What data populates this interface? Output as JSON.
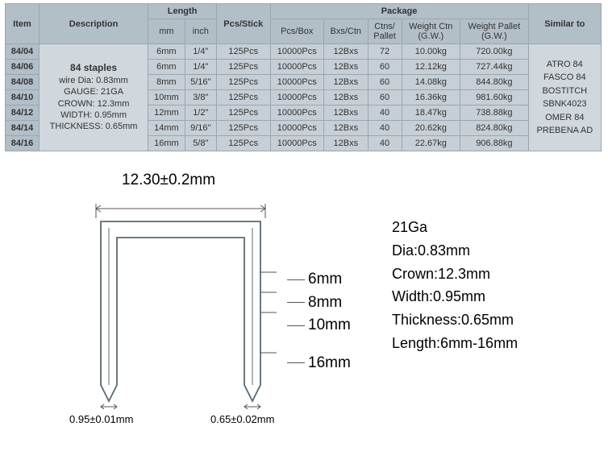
{
  "table": {
    "headerGroups": {
      "item": "Item",
      "description": "Description",
      "length": "Length",
      "pcsStick": "Pcs/Stick",
      "package": "Package",
      "similar": "Similar to"
    },
    "headerSub": {
      "mm": "mm",
      "inch": "inch",
      "pcsBox": "Pcs/Box",
      "bxsCtn": "Bxs/Ctn",
      "ctnsPallet": "Ctns/\nPallet",
      "weightCtn": "Weight Ctn\n(G.W.)",
      "weightPallet": "Weight Pallet\n(G.W.)"
    },
    "description": {
      "title": "84 staples",
      "l1": "wire Dia: 0.83mm",
      "l2": "GAUGE: 21GA",
      "l3": "CROWN: 12.3mm",
      "l4": "WIDTH: 0.95mm",
      "l5": "THICKNESS: 0.65mm"
    },
    "similar": {
      "l1": "ATRO 84",
      "l2": "FASCO 84",
      "l3": "BOSTITCH",
      "l4": "SBNK4023",
      "l5": "OMER 84",
      "l6": "PREBENA AD"
    },
    "rows": [
      {
        "item": "84/04",
        "mm": "6mm",
        "inch": "1/4\"",
        "pcsStick": "125Pcs",
        "pcsBox": "10000Pcs",
        "bxsCtn": "12Bxs",
        "ctnsPallet": "72",
        "wCtn": "10.00kg",
        "wPallet": "720.00kg"
      },
      {
        "item": "84/06",
        "mm": "6mm",
        "inch": "1/4\"",
        "pcsStick": "125Pcs",
        "pcsBox": "10000Pcs",
        "bxsCtn": "12Bxs",
        "ctnsPallet": "60",
        "wCtn": "12.12kg",
        "wPallet": "727.44kg"
      },
      {
        "item": "84/08",
        "mm": "8mm",
        "inch": "5/16\"",
        "pcsStick": "125Pcs",
        "pcsBox": "10000Pcs",
        "bxsCtn": "12Bxs",
        "ctnsPallet": "60",
        "wCtn": "14.08kg",
        "wPallet": "844.80kg"
      },
      {
        "item": "84/10",
        "mm": "10mm",
        "inch": "3/8\"",
        "pcsStick": "125Pcs",
        "pcsBox": "10000Pcs",
        "bxsCtn": "12Bxs",
        "ctnsPallet": "60",
        "wCtn": "16.36kg",
        "wPallet": "981.60kg"
      },
      {
        "item": "84/12",
        "mm": "12mm",
        "inch": "1/2\"",
        "pcsStick": "125Pcs",
        "pcsBox": "10000Pcs",
        "bxsCtn": "12Bxs",
        "ctnsPallet": "40",
        "wCtn": "18.47kg",
        "wPallet": "738.88kg"
      },
      {
        "item": "84/14",
        "mm": "14mm",
        "inch": "9/16\"",
        "pcsStick": "125Pcs",
        "pcsBox": "10000Pcs",
        "bxsCtn": "12Bxs",
        "ctnsPallet": "40",
        "wCtn": "20.62kg",
        "wPallet": "824.80kg"
      },
      {
        "item": "84/16",
        "mm": "16mm",
        "inch": "5/8\"",
        "pcsStick": "125Pcs",
        "pcsBox": "10000Pcs",
        "bxsCtn": "12Bxs",
        "ctnsPallet": "40",
        "wCtn": "22.67kg",
        "wPallet": "906.88kg"
      }
    ]
  },
  "diagram": {
    "crownDim": "12.30±0.2mm",
    "legMarks": [
      "6mm",
      "8mm",
      "10mm",
      "16mm"
    ],
    "widthDim": "0.95±0.01mm",
    "thickDim": "0.65±0.02mm",
    "svg": {
      "crownInner": 160,
      "legHeight": 210,
      "stroke": "#5a6a75",
      "strokeWidth": 2
    }
  },
  "specs": {
    "l1": "21Ga",
    "l2": "Dia:0.83mm",
    "l3": "Crown:12.3mm",
    "l4": "Width:0.95mm",
    "l5": "Thickness:0.65mm",
    "l6": "Length:6mm-16mm"
  },
  "colors": {
    "tableHeader": "#b3bfc7",
    "tableCell": "#c7cfd6",
    "tableBorder": "#9aa6b0"
  }
}
